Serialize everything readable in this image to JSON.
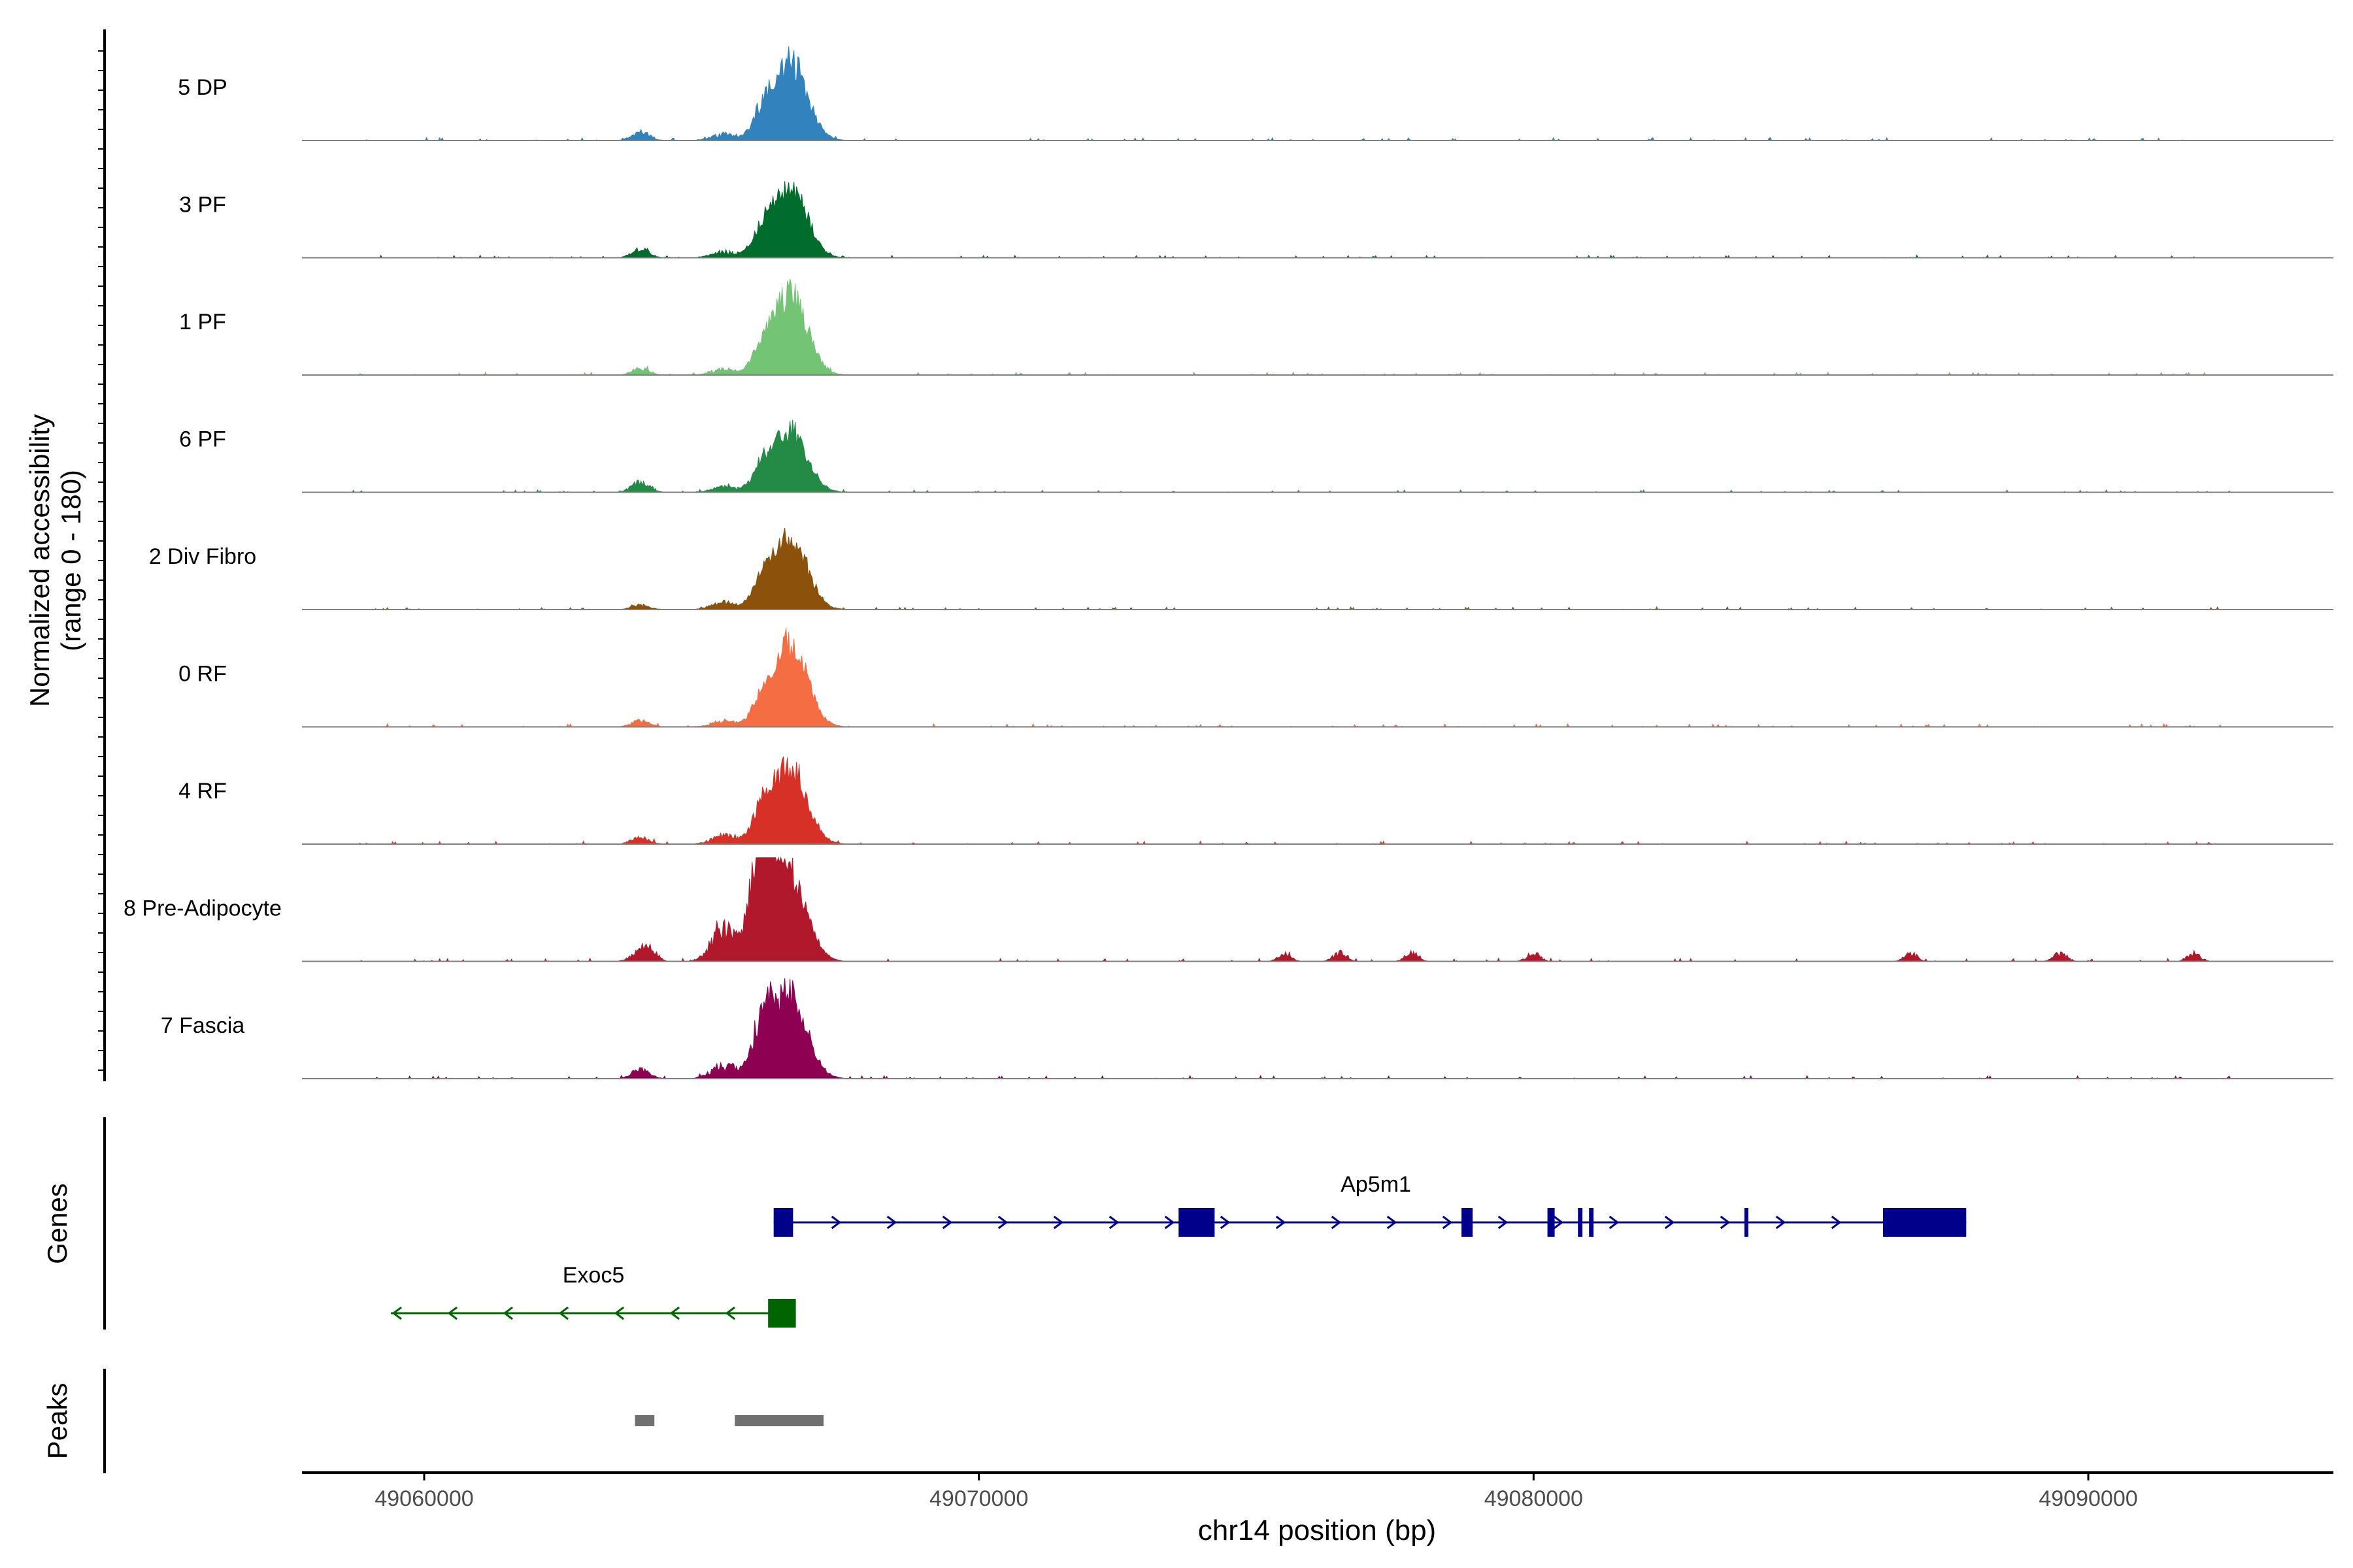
{
  "chart_data": {
    "type": "area",
    "description_kind": "genome coverage track plot",
    "y_axis": {
      "label": "Normalized accessibility",
      "sublabel": "(range 0 - 180)",
      "range": [
        0,
        180
      ]
    },
    "x_axis": {
      "label": "chr14 position (bp)",
      "ticks": [
        49060000,
        49070000,
        49080000,
        49090000
      ],
      "range": [
        49057800,
        49094400
      ]
    },
    "tracks": [
      {
        "name": "5 DP",
        "color": "#3182BD",
        "peak_max": 150,
        "secondary": 0.09,
        "upstream": 0.12,
        "extra": []
      },
      {
        "name": "3 PF",
        "color": "#006D2C",
        "peak_max": 135,
        "secondary": 0.1,
        "upstream": 0.13,
        "extra": []
      },
      {
        "name": "1 PF",
        "color": "#74C476",
        "peak_max": 155,
        "secondary": 0.08,
        "upstream": 0.09,
        "extra": []
      },
      {
        "name": "6 PF",
        "color": "#238B45",
        "peak_max": 120,
        "secondary": 0.1,
        "upstream": 0.18,
        "extra": []
      },
      {
        "name": "2 Div Fibro",
        "color": "#8C510A",
        "peak_max": 140,
        "secondary": 0.11,
        "upstream": 0.07,
        "extra": []
      },
      {
        "name": "0 RF",
        "color": "#F46D43",
        "peak_max": 160,
        "secondary": 0.08,
        "upstream": 0.08,
        "extra": []
      },
      {
        "name": "4 RF",
        "color": "#D73027",
        "peak_max": 150,
        "secondary": 0.12,
        "upstream": 0.1,
        "extra": []
      },
      {
        "name": "8 Pre-Adipocyte",
        "color": "#B2182B",
        "peak_max": 165,
        "secondary": 0.48,
        "upstream": 0.14,
        "extra": [
          49064100,
          49065900,
          49066200,
          49075500,
          49076500,
          49077800,
          49080000,
          49086800,
          49089500,
          49091900
        ]
      },
      {
        "name": "7 Fascia",
        "color": "#8E0152",
        "peak_max": 160,
        "secondary": 0.2,
        "upstream": 0.12,
        "extra": []
      }
    ],
    "genes": [
      {
        "name": "Ap5m1",
        "strand": "+",
        "color": "#00008B",
        "start": 49066300,
        "end": 49087800,
        "exons": [
          [
            49066300,
            49066650
          ],
          [
            49073600,
            49074250
          ],
          [
            49078700,
            49078900
          ],
          [
            49080250,
            49080380
          ],
          [
            49080800,
            49080880
          ],
          [
            49081000,
            49081080
          ],
          [
            49083800,
            49083870
          ],
          [
            49086300,
            49087800
          ]
        ]
      },
      {
        "name": "Exoc5",
        "strand": "-",
        "color": "#006400",
        "start": 49059400,
        "end": 49066700,
        "exons": [
          [
            49066200,
            49066700
          ]
        ]
      }
    ],
    "peaks": [
      [
        49063800,
        49064150
      ],
      [
        49065600,
        49067200
      ]
    ],
    "peaks_color": "#707070",
    "panel_labels": {
      "genes": "Genes",
      "peaks": "Peaks"
    }
  }
}
